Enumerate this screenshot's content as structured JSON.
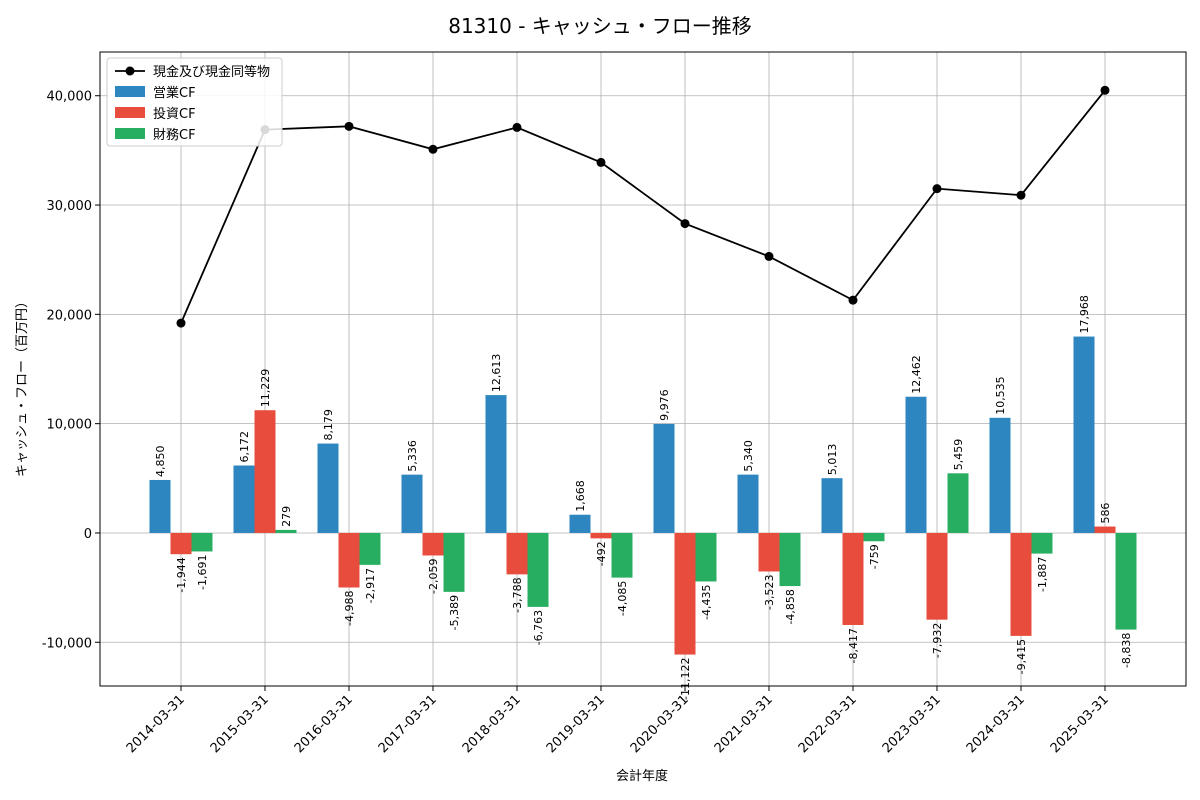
{
  "chart_data": {
    "type": "bar",
    "title": "81310 - キャッシュ・フロー推移",
    "xlabel": "会計年度",
    "ylabel": "キャッシュ・フロー（百万円）",
    "ylim": [
      -14000,
      44000
    ],
    "yticks": [
      -10000,
      0,
      10000,
      20000,
      30000,
      40000
    ],
    "ytick_labels": [
      "-10,000",
      "0",
      "10,000",
      "20,000",
      "30,000",
      "40,000"
    ],
    "grid": true,
    "legend_position": "top-left",
    "categories": [
      "2014-03-31",
      "2015-03-31",
      "2016-03-31",
      "2017-03-31",
      "2018-03-31",
      "2019-03-31",
      "2020-03-31",
      "2021-03-31",
      "2022-03-31",
      "2023-03-31",
      "2024-03-31",
      "2025-03-31"
    ],
    "series": [
      {
        "name": "営業CF",
        "type": "bar",
        "color": "#2e86c1",
        "values": [
          4850,
          6172,
          8179,
          5336,
          12613,
          1668,
          9976,
          5340,
          5013,
          12462,
          10535,
          17968
        ],
        "labels": [
          "4,850",
          "6,172",
          "8,179",
          "5,336",
          "12,613",
          "1,668",
          "9,976",
          "5,340",
          "5,013",
          "12,462",
          "10,535",
          "17,968"
        ]
      },
      {
        "name": "投資CF",
        "type": "bar",
        "color": "#e74c3c",
        "values": [
          -1944,
          11229,
          -4988,
          -2059,
          -3788,
          -492,
          -11122,
          -3523,
          -8417,
          -7932,
          -9415,
          586
        ],
        "labels": [
          "-1,944",
          "11,229",
          "-4,988",
          "-2,059",
          "-3,788",
          "-492",
          "-11,122",
          "-3,523",
          "-8,417",
          "-7,932",
          "-9,415",
          "586"
        ]
      },
      {
        "name": "財務CF",
        "type": "bar",
        "color": "#27ae60",
        "values": [
          -1691,
          279,
          -2917,
          -5389,
          -6763,
          -4085,
          -4435,
          -4858,
          -759,
          5459,
          -1887,
          -8838
        ],
        "labels": [
          "-1,691",
          "279",
          "-2,917",
          "-5,389",
          "-6,763",
          "-4,085",
          "-4,435",
          "-4,858",
          "-759",
          "5,459",
          "-1,887",
          "-8,838"
        ]
      },
      {
        "name": "現金及び現金同等物",
        "type": "line",
        "color": "#000000",
        "values": [
          19200,
          36900,
          37200,
          35100,
          37100,
          33900,
          28300,
          25300,
          21300,
          31500,
          30900,
          40500
        ]
      }
    ]
  }
}
